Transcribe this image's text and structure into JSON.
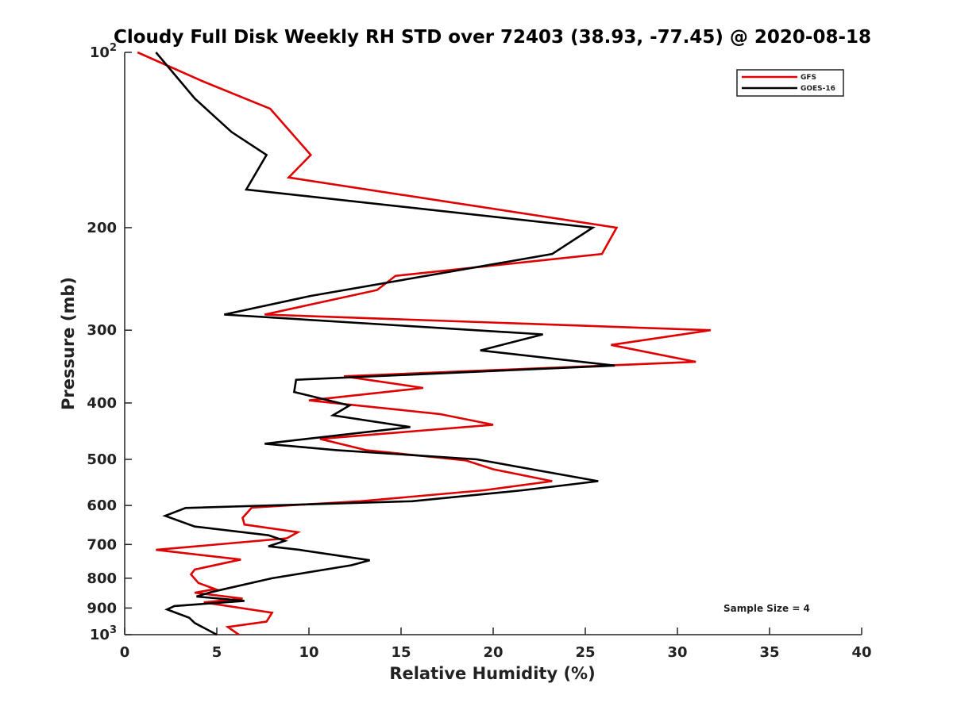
{
  "chart_data": {
    "type": "line",
    "title": "Cloudy Full Disk Weekly RH STD over 72403 (38.93, -77.45) @ 2020-08-18",
    "xlabel": "Relative Humidity (%)",
    "ylabel": "Pressure (mb)",
    "xlim": [
      0,
      40
    ],
    "ylim": [
      100,
      1000
    ],
    "y_scale": "log",
    "y_reversed": true,
    "grid": false,
    "legend_position": "top-right",
    "annotation": "Sample Size = 4",
    "x_ticks": [
      "0",
      "5",
      "10",
      "15",
      "20",
      "25",
      "30",
      "35",
      "40"
    ],
    "x_tick_values": [
      0,
      5,
      10,
      15,
      20,
      25,
      30,
      35,
      40
    ],
    "y_ticks": [
      {
        "value": 100,
        "base": "10",
        "sup": "2"
      },
      {
        "value": 200,
        "base": "200",
        "sup": ""
      },
      {
        "value": 300,
        "base": "300",
        "sup": ""
      },
      {
        "value": 400,
        "base": "400",
        "sup": ""
      },
      {
        "value": 500,
        "base": "500",
        "sup": ""
      },
      {
        "value": 600,
        "base": "600",
        "sup": ""
      },
      {
        "value": 700,
        "base": "700",
        "sup": ""
      },
      {
        "value": 800,
        "base": "800",
        "sup": ""
      },
      {
        "value": 900,
        "base": "900",
        "sup": ""
      },
      {
        "value": 1000,
        "base": "10",
        "sup": "3"
      }
    ],
    "series": [
      {
        "name": "GFS",
        "color": "#e00000",
        "points": [
          [
            0.7,
            100
          ],
          [
            4.2,
            112
          ],
          [
            7.9,
            125
          ],
          [
            10.1,
            150
          ],
          [
            8.9,
            164
          ],
          [
            26.7,
            200
          ],
          [
            25.9,
            222
          ],
          [
            14.7,
            242
          ],
          [
            13.7,
            256
          ],
          [
            7.6,
            282
          ],
          [
            31.8,
            300
          ],
          [
            26.4,
            318
          ],
          [
            31.0,
            340
          ],
          [
            11.9,
            360
          ],
          [
            16.2,
            377
          ],
          [
            10.0,
            396
          ],
          [
            17.1,
            418
          ],
          [
            20.0,
            436
          ],
          [
            10.6,
            461
          ],
          [
            13.1,
            482
          ],
          [
            18.5,
            502
          ],
          [
            20.0,
            520
          ],
          [
            23.2,
            545
          ],
          [
            19.5,
            565
          ],
          [
            12.8,
            590
          ],
          [
            6.9,
            605
          ],
          [
            6.4,
            630
          ],
          [
            6.5,
            647
          ],
          [
            9.4,
            667
          ],
          [
            8.8,
            683
          ],
          [
            1.7,
            715
          ],
          [
            6.3,
            743
          ],
          [
            3.8,
            773
          ],
          [
            3.6,
            788
          ],
          [
            4.0,
            815
          ],
          [
            4.9,
            835
          ],
          [
            3.8,
            847
          ],
          [
            6.4,
            867
          ],
          [
            4.3,
            880
          ],
          [
            8.0,
            917
          ],
          [
            7.7,
            950
          ],
          [
            5.6,
            970
          ],
          [
            6.2,
            1000
          ]
        ]
      },
      {
        "name": "GOES-16",
        "color": "#000000",
        "points": [
          [
            1.7,
            100
          ],
          [
            3.8,
            120
          ],
          [
            5.8,
            137
          ],
          [
            7.7,
            150
          ],
          [
            6.6,
            172
          ],
          [
            25.4,
            200
          ],
          [
            23.2,
            222
          ],
          [
            10.1,
            262
          ],
          [
            5.4,
            282
          ],
          [
            22.7,
            305
          ],
          [
            19.3,
            325
          ],
          [
            26.6,
            345
          ],
          [
            9.3,
            365
          ],
          [
            9.2,
            383
          ],
          [
            12.2,
            404
          ],
          [
            11.3,
            420
          ],
          [
            15.5,
            440
          ],
          [
            7.6,
            470
          ],
          [
            11.5,
            482
          ],
          [
            19.1,
            500
          ],
          [
            25.7,
            545
          ],
          [
            21.6,
            565
          ],
          [
            15.6,
            590
          ],
          [
            3.3,
            606
          ],
          [
            2.2,
            625
          ],
          [
            3.8,
            652
          ],
          [
            7.8,
            675
          ],
          [
            8.7,
            690
          ],
          [
            7.8,
            705
          ],
          [
            9.5,
            715
          ],
          [
            13.3,
            745
          ],
          [
            12.3,
            760
          ],
          [
            8.0,
            800
          ],
          [
            4.7,
            845
          ],
          [
            3.9,
            860
          ],
          [
            6.5,
            875
          ],
          [
            2.7,
            893
          ],
          [
            2.3,
            905
          ],
          [
            3.5,
            935
          ],
          [
            3.8,
            955
          ],
          [
            5.0,
            1000
          ]
        ]
      }
    ]
  }
}
